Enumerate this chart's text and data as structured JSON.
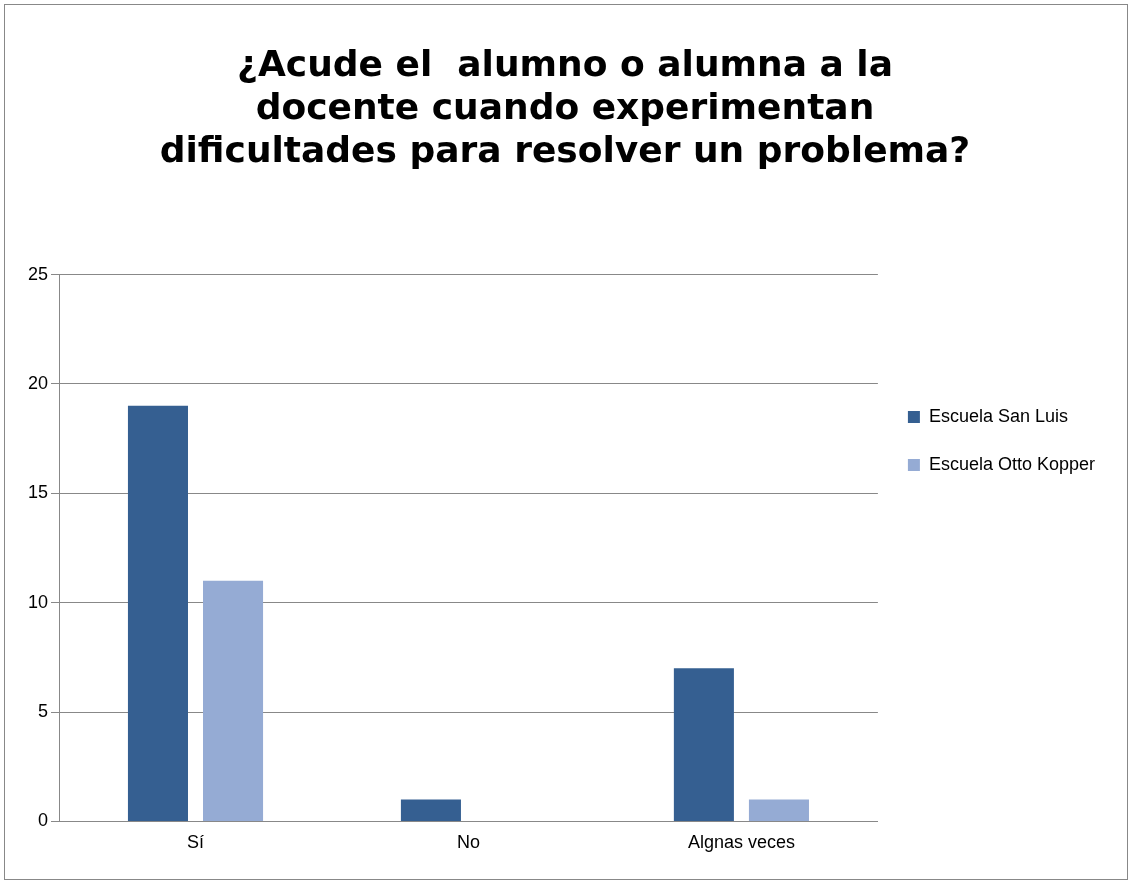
{
  "chart_data": {
    "type": "bar",
    "title": "¿Acude el  alumno o alumna a la docente cuando experimentan dificultades para resolver un problema?",
    "categories": [
      "Sí",
      "No",
      "Algnas veces"
    ],
    "series": [
      {
        "name": "Escuela San Luis",
        "color": "#355f91",
        "values": [
          19,
          1,
          7
        ]
      },
      {
        "name": "Escuela Otto Kopper",
        "color": "#95abd4",
        "values": [
          11,
          0,
          1
        ]
      }
    ],
    "ylim": [
      0,
      25
    ],
    "yticks": [
      0,
      5,
      10,
      15,
      20,
      25
    ],
    "grid": "y",
    "legend": "right"
  }
}
